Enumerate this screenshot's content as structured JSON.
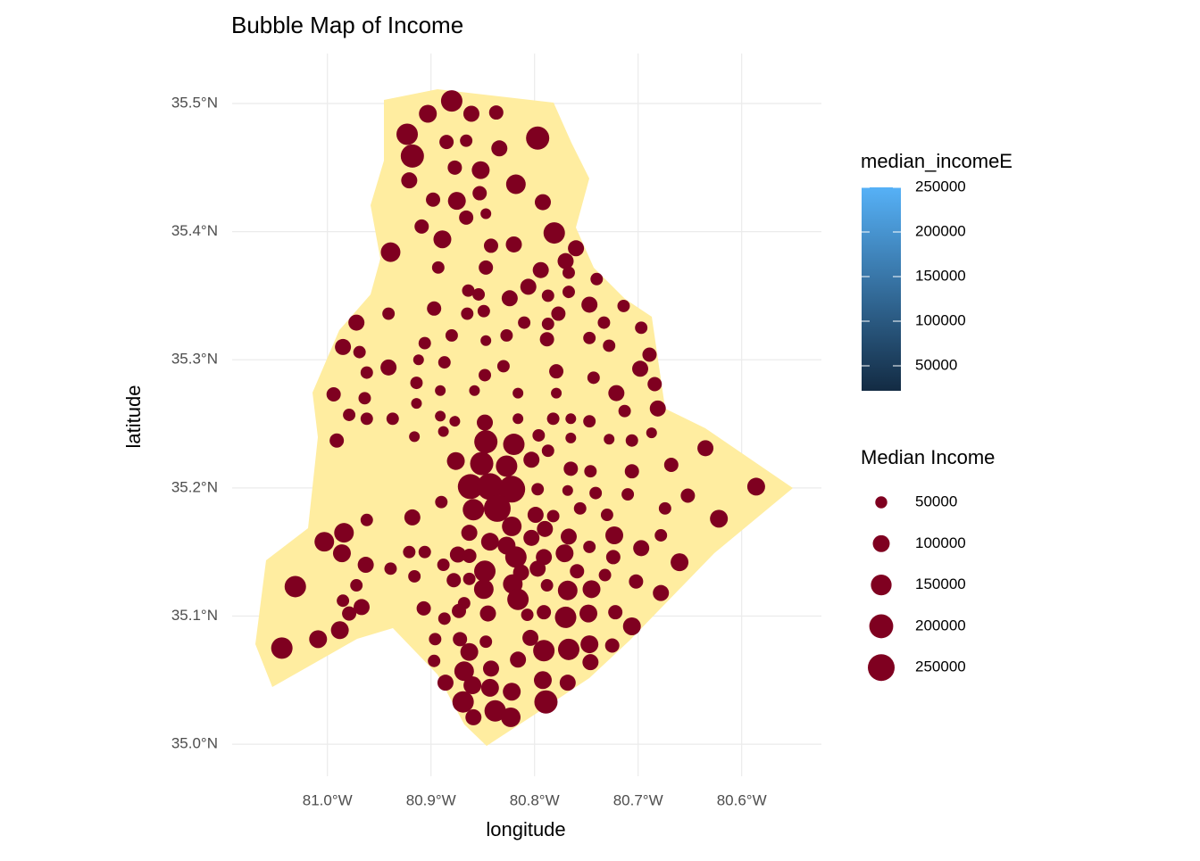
{
  "chart_data": {
    "type": "bubble",
    "title": "Bubble Map of Income",
    "x_label": "longitude",
    "y_label": "latitude",
    "xlim": [
      -81.092,
      -80.523
    ],
    "ylim": [
      34.975,
      35.539
    ],
    "xticks": [
      {
        "value": -81.0,
        "label": "81.0°W"
      },
      {
        "value": -80.9,
        "label": "80.9°W"
      },
      {
        "value": -80.8,
        "label": "80.8°W"
      },
      {
        "value": -80.7,
        "label": "80.7°W"
      },
      {
        "value": -80.6,
        "label": "80.6°W"
      }
    ],
    "yticks": [
      {
        "value": 35.0,
        "label": "35.0°N"
      },
      {
        "value": 35.1,
        "label": "35.1°N"
      },
      {
        "value": 35.2,
        "label": "35.2°N"
      },
      {
        "value": 35.3,
        "label": "35.3°N"
      },
      {
        "value": 35.4,
        "label": "35.4°N"
      },
      {
        "value": 35.5,
        "label": "35.5°N"
      }
    ],
    "grid": true,
    "color": "#7f0020",
    "land_color": "#ffeda0",
    "x": [
      -80.88,
      -80.903,
      -80.861,
      -80.837,
      -80.923,
      -80.797,
      -80.918,
      -80.885,
      -80.866,
      -80.834,
      -80.877,
      -80.852,
      -80.921,
      -80.818,
      -80.898,
      -80.875,
      -80.853,
      -80.792,
      -80.866,
      -80.847,
      -80.909,
      -80.889,
      -80.781,
      -80.939,
      -80.842,
      -80.82,
      -80.76,
      -80.77,
      -80.893,
      -80.847,
      -80.794,
      -80.767,
      -80.74,
      -80.864,
      -80.854,
      -80.824,
      -80.806,
      -80.787,
      -80.767,
      -80.747,
      -80.714,
      -80.897,
      -80.941,
      -80.972,
      -80.865,
      -80.849,
      -80.81,
      -80.787,
      -80.777,
      -80.733,
      -80.697,
      -80.88,
      -80.906,
      -80.985,
      -80.969,
      -80.847,
      -80.827,
      -80.788,
      -80.747,
      -80.728,
      -80.689,
      -80.698,
      -80.912,
      -80.941,
      -80.962,
      -80.887,
      -80.848,
      -80.83,
      -80.779,
      -80.743,
      -80.684,
      -80.994,
      -80.964,
      -80.914,
      -80.891,
      -80.858,
      -80.816,
      -80.779,
      -80.721,
      -80.681,
      -80.979,
      -80.962,
      -80.937,
      -80.914,
      -80.891,
      -80.877,
      -80.848,
      -80.816,
      -80.782,
      -80.765,
      -80.747,
      -80.713,
      -80.991,
      -80.916,
      -80.888,
      -80.847,
      -80.82,
      -80.796,
      -80.765,
      -80.728,
      -80.706,
      -80.687,
      -80.635,
      -80.876,
      -80.851,
      -80.827,
      -80.803,
      -80.787,
      -80.765,
      -80.746,
      -80.706,
      -80.668,
      -80.586,
      -80.862,
      -80.843,
      -80.822,
      -80.797,
      -80.768,
      -80.741,
      -80.71,
      -80.652,
      -80.836,
      -80.859,
      -80.89,
      -80.863,
      -80.822,
      -80.799,
      -80.782,
      -80.756,
      -80.73,
      -80.674,
      -80.622,
      -80.918,
      -80.962,
      -80.984,
      -81.003,
      -80.986,
      -80.874,
      -80.843,
      -80.803,
      -80.79,
      -80.767,
      -80.723,
      -80.697,
      -80.678,
      -80.827,
      -80.818,
      -80.791,
      -80.771,
      -80.747,
      -80.724,
      -80.66,
      -80.963,
      -80.939,
      -80.921,
      -80.906,
      -80.888,
      -80.863,
      -80.848,
      -80.813,
      -80.797,
      -80.759,
      -80.732,
      -80.702,
      -81.031,
      -80.972,
      -80.916,
      -80.878,
      -80.863,
      -80.821,
      -80.788,
      -80.768,
      -80.745,
      -80.678,
      -80.985,
      -80.967,
      -80.868,
      -80.849,
      -80.907,
      -80.816,
      -80.791,
      -80.77,
      -80.748,
      -80.722,
      -80.979,
      -80.988,
      -80.873,
      -80.887,
      -80.845,
      -80.807,
      -80.706,
      -81.009,
      -81.044,
      -80.896,
      -80.872,
      -80.847,
      -80.804,
      -80.767,
      -80.747,
      -80.725,
      -80.791,
      -80.863,
      -80.897,
      -80.868,
      -80.842,
      -80.816,
      -80.746,
      -80.886,
      -80.86,
      -80.843,
      -80.822,
      -80.792,
      -80.768,
      -80.789,
      -80.869,
      -80.838,
      -80.823,
      -80.859
    ],
    "values": [
      35.502,
      35.492,
      35.492,
      35.493,
      35.476,
      35.473,
      35.459,
      35.47,
      35.471,
      35.465,
      35.45,
      35.448,
      35.44,
      35.437,
      35.425,
      35.424,
      35.43,
      35.423,
      35.411,
      35.414,
      35.404,
      35.394,
      35.399,
      35.384,
      35.389,
      35.39,
      35.387,
      35.377,
      35.372,
      35.372,
      35.37,
      35.368,
      35.363,
      35.354,
      35.351,
      35.348,
      35.357,
      35.35,
      35.353,
      35.343,
      35.342,
      35.34,
      35.336,
      35.329,
      35.336,
      35.338,
      35.329,
      35.328,
      35.336,
      35.329,
      35.325,
      35.319,
      35.313,
      35.31,
      35.306,
      35.315,
      35.319,
      35.316,
      35.317,
      35.311,
      35.304,
      35.293,
      35.3,
      35.294,
      35.29,
      35.298,
      35.288,
      35.295,
      35.291,
      35.286,
      35.281,
      35.273,
      35.27,
      35.282,
      35.276,
      35.276,
      35.274,
      35.274,
      35.274,
      35.262,
      35.257,
      35.254,
      35.254,
      35.266,
      35.256,
      35.252,
      35.251,
      35.254,
      35.254,
      35.254,
      35.252,
      35.26,
      35.237,
      35.24,
      35.244,
      35.236,
      35.234,
      35.241,
      35.239,
      35.238,
      35.237,
      35.243,
      35.231,
      35.221,
      35.219,
      35.217,
      35.222,
      35.229,
      35.215,
      35.213,
      35.213,
      35.218,
      35.201,
      35.201,
      35.201,
      35.199,
      35.199,
      35.198,
      35.196,
      35.195,
      35.194,
      35.184,
      35.183,
      35.189,
      35.165,
      35.17,
      35.179,
      35.178,
      35.184,
      35.179,
      35.184,
      35.176,
      35.177,
      35.175,
      35.165,
      35.158,
      35.149,
      35.148,
      35.158,
      35.161,
      35.168,
      35.162,
      35.163,
      35.153,
      35.163,
      35.155,
      35.146,
      35.146,
      35.149,
      35.154,
      35.146,
      35.142,
      35.14,
      35.137,
      35.15,
      35.15,
      35.14,
      35.147,
      35.135,
      35.134,
      35.137,
      35.135,
      35.132,
      35.127,
      35.123,
      35.124,
      35.131,
      35.128,
      35.129,
      35.125,
      35.124,
      35.12,
      35.121,
      35.118,
      35.112,
      35.107,
      35.11,
      35.121,
      35.106,
      35.113,
      35.103,
      35.099,
      35.102,
      35.103,
      35.102,
      35.089,
      35.104,
      35.098,
      35.102,
      35.101,
      35.092,
      35.082,
      35.075,
      35.082,
      35.082,
      35.08,
      35.083,
      35.074,
      35.078,
      35.077,
      35.073,
      35.072,
      35.065,
      35.057,
      35.059,
      35.066,
      35.064,
      35.048,
      35.046,
      35.044,
      35.041,
      35.05,
      35.048,
      35.033,
      35.033,
      35.026,
      35.021,
      35.021
    ],
    "sizes": [
      160000,
      111000,
      90000,
      71000,
      160000,
      188000,
      188000,
      71000,
      54000,
      90000,
      71000,
      111000,
      90000,
      134000,
      71000,
      111000,
      71000,
      90000,
      71000,
      40000,
      71000,
      111000,
      160000,
      134000,
      71000,
      90000,
      90000,
      90000,
      54000,
      71000,
      90000,
      54000,
      54000,
      54000,
      54000,
      90000,
      90000,
      54000,
      54000,
      90000,
      54000,
      71000,
      54000,
      90000,
      54000,
      54000,
      54000,
      54000,
      71000,
      54000,
      54000,
      54000,
      54000,
      90000,
      54000,
      40000,
      54000,
      71000,
      54000,
      54000,
      71000,
      90000,
      40000,
      90000,
      54000,
      54000,
      54000,
      54000,
      71000,
      54000,
      71000,
      71000,
      54000,
      54000,
      40000,
      40000,
      40000,
      40000,
      90000,
      90000,
      54000,
      54000,
      54000,
      40000,
      40000,
      40000,
      90000,
      40000,
      54000,
      40000,
      54000,
      54000,
      71000,
      40000,
      40000,
      188000,
      160000,
      54000,
      40000,
      40000,
      54000,
      40000,
      90000,
      111000,
      188000,
      160000,
      90000,
      54000,
      71000,
      54000,
      71000,
      71000,
      111000,
      218000,
      250000,
      250000,
      54000,
      40000,
      54000,
      54000,
      71000,
      250000,
      160000,
      54000,
      90000,
      134000,
      90000,
      54000,
      54000,
      54000,
      54000,
      111000,
      90000,
      54000,
      134000,
      134000,
      111000,
      90000,
      111000,
      90000,
      90000,
      90000,
      111000,
      90000,
      54000,
      111000,
      160000,
      90000,
      111000,
      54000,
      71000,
      111000,
      90000,
      54000,
      54000,
      54000,
      54000,
      71000,
      160000,
      90000,
      90000,
      71000,
      54000,
      71000,
      160000,
      54000,
      54000,
      71000,
      54000,
      134000,
      54000,
      134000,
      111000,
      90000,
      54000,
      90000,
      54000,
      134000,
      71000,
      160000,
      71000,
      160000,
      111000,
      71000,
      71000,
      111000,
      71000,
      54000,
      90000,
      54000,
      111000,
      111000,
      160000,
      54000,
      71000,
      54000,
      90000,
      160000,
      111000,
      71000,
      160000,
      111000,
      54000,
      134000,
      90000,
      90000,
      90000,
      90000,
      111000,
      111000,
      111000,
      111000,
      90000,
      188000,
      160000,
      160000,
      134000,
      90000
    ],
    "colorbar": {
      "title": "median_incomeE",
      "lim": [
        22000,
        250000
      ],
      "ticks": [
        50000,
        100000,
        150000,
        200000,
        250000
      ],
      "colors": [
        "#132b43",
        "#56b1f7"
      ]
    },
    "size_legend": {
      "title": "Median Income",
      "values": [
        50000,
        100000,
        150000,
        200000,
        250000
      ]
    }
  }
}
